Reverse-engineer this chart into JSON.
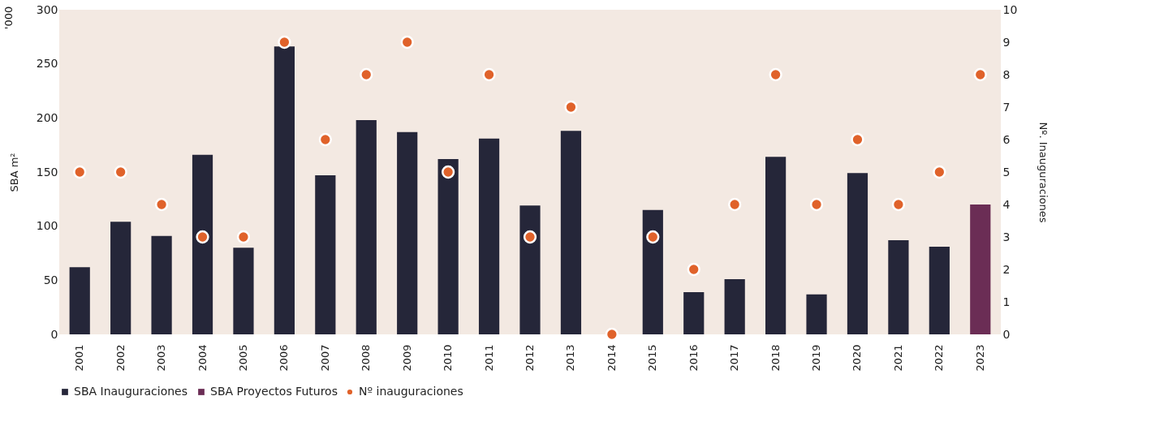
{
  "chart_data": {
    "type": "bar",
    "ylabel": "SBA m²",
    "y2label": "Nº. Inauguraciones",
    "annotations": [
      "'000"
    ],
    "categories": [
      "2001",
      "2002",
      "2003",
      "2004",
      "2005",
      "2006",
      "2007",
      "2008",
      "2009",
      "2010",
      "2011",
      "2012",
      "2013",
      "2014",
      "2015",
      "2016",
      "2017",
      "2018",
      "2019",
      "2020",
      "2021",
      "2022",
      "2023"
    ],
    "series": [
      {
        "name": "SBA Inauguraciones",
        "color": "#252639",
        "values": [
          62,
          104,
          91,
          166,
          80,
          266,
          147,
          198,
          187,
          162,
          181,
          119,
          188,
          0,
          115,
          39,
          51,
          164,
          37,
          149,
          87,
          81,
          null
        ]
      },
      {
        "name": "SBA Proyectos Futuros",
        "color": "#6b2d55",
        "values": [
          null,
          null,
          null,
          null,
          null,
          null,
          null,
          null,
          null,
          null,
          null,
          null,
          null,
          null,
          null,
          null,
          null,
          null,
          null,
          null,
          null,
          null,
          120
        ]
      },
      {
        "name": "Nº inauguraciones",
        "type": "scatter",
        "axis": "y2",
        "marker": "circle",
        "color": "#e0622a",
        "values": [
          5,
          5,
          4,
          3,
          3,
          9,
          6,
          8,
          9,
          5,
          8,
          3,
          7,
          0,
          3,
          2,
          4,
          8,
          4,
          6,
          4,
          5,
          8
        ]
      }
    ],
    "ylim": [
      0,
      300
    ],
    "yticks": [
      0,
      50,
      100,
      150,
      200,
      250,
      300
    ],
    "y2lim": [
      0,
      10
    ],
    "y2ticks": [
      0,
      1,
      2,
      3,
      4,
      5,
      6,
      7,
      8,
      9,
      10
    ],
    "grid": false,
    "legend": "bottom"
  }
}
